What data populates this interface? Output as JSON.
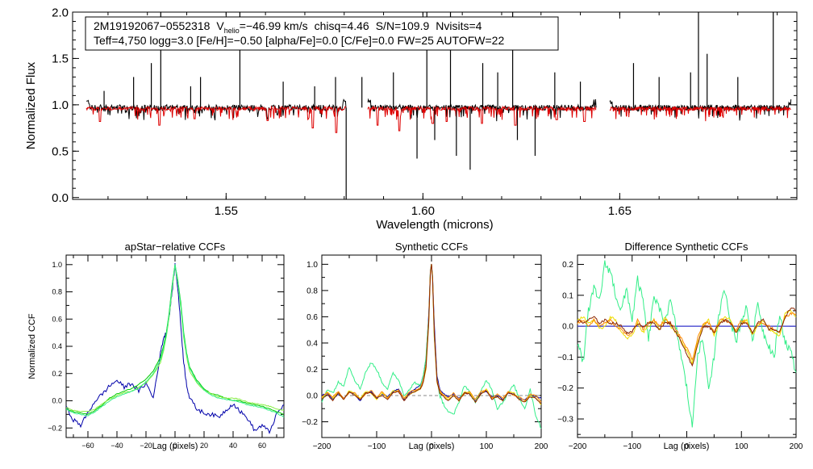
{
  "figure": {
    "info_line1": {
      "star": "2M19192067−0552318",
      "v_prefix": "V",
      "v_sub": "helio",
      "v_value": "=−46.99 km/s",
      "chisq": "chisq=4.46",
      "sn": "S/N=109.9",
      "nvisits": "Nvisits=4"
    },
    "info_line2": "Teff=4,750 logg=3.0 [Fe/H]=−0.50 [alpha/Fe]=0.0 [C/Fe]=0.0 FW=25 AUTOFW=22"
  },
  "colors": {
    "observed": "#000000",
    "model": "#dd0000",
    "visit1": "#0000aa",
    "visit2": "#00cc00",
    "visit3": "#88ee44",
    "visit4": "#33ee88",
    "visit5": "#eedd00",
    "visit6": "#ff8800",
    "visit7": "#cc0000",
    "visit8": "#8b2500",
    "zero_line": "#3333cc"
  },
  "chart_data": [
    {
      "type": "line",
      "title": "",
      "xlabel": "Wavelength (microns)",
      "ylabel": "Normalized Flux",
      "xlim": [
        1.511,
        1.695
      ],
      "ylim": [
        -0.02,
        2.0
      ],
      "xticks": [
        1.55,
        1.6,
        1.65
      ],
      "xtick_labels": [
        "1.55",
        "1.60",
        "1.65"
      ],
      "yticks": [
        0.0,
        0.5,
        1.0,
        1.5,
        2.0
      ],
      "ytick_labels": [
        "0.0",
        "0.5",
        "1.0",
        "1.5",
        "2.0"
      ],
      "chips": [
        [
          1.5145,
          1.5805
        ],
        [
          1.586,
          1.644
        ],
        [
          1.6475,
          1.6935
        ]
      ],
      "series": [
        {
          "continuum": 0.97,
          "spikes": [
            [
              1.519,
              1.15
            ],
            [
              1.5265,
              1.3
            ],
            [
              1.531,
              1.45
            ],
            [
              1.5334,
              2.0
            ],
            [
              1.541,
              1.2
            ],
            [
              1.5435,
              1.3
            ],
            [
              1.5535,
              2.0
            ],
            [
              1.5645,
              1.25
            ],
            [
              1.5725,
              1.2
            ],
            [
              1.5778,
              1.3
            ],
            [
              1.5845,
              1.3
            ],
            [
              1.5925,
              1.35
            ],
            [
              1.601,
              2.0
            ],
            [
              1.607,
              2.0
            ],
            [
              1.6152,
              1.45
            ],
            [
              1.619,
              1.35
            ],
            [
              1.6228,
              2.0
            ],
            [
              1.6335,
              1.35
            ],
            [
              1.64,
              1.25
            ],
            [
              1.6535,
              1.45
            ],
            [
              1.66,
              1.3
            ],
            [
              1.668,
              1.35
            ],
            [
              1.67,
              2.0
            ],
            [
              1.6722,
              1.55
            ],
            [
              1.68,
              1.3
            ],
            [
              1.689,
              2.0
            ]
          ],
          "dips": [
            [
              1.5805,
              -0.02
            ],
            [
              1.5985,
              0.42
            ],
            [
              1.603,
              0.62
            ],
            [
              1.6085,
              0.45
            ],
            [
              1.612,
              0.3
            ],
            [
              1.6285,
              0.45
            ],
            [
              1.624,
              0.62
            ]
          ]
        },
        {
          "continuum": 0.96,
          "absorption": [
            [
              1.518,
              0.82
            ],
            [
              1.533,
              0.78
            ],
            [
              1.542,
              0.85
            ],
            [
              1.5605,
              0.83
            ],
            [
              1.572,
              0.75
            ],
            [
              1.578,
              0.7
            ],
            [
              1.5885,
              0.78
            ],
            [
              1.594,
              0.72
            ],
            [
              1.6025,
              0.8
            ],
            [
              1.606,
              0.82
            ],
            [
              1.615,
              0.8
            ],
            [
              1.6235,
              0.78
            ],
            [
              1.634,
              0.84
            ],
            [
              1.641,
              0.82
            ]
          ]
        }
      ]
    },
    {
      "type": "line",
      "title": "apStar−relative CCFs",
      "xlabel": "Lag (pixels)",
      "ylabel": "Normalized CCF",
      "xlim": [
        -75,
        75
      ],
      "ylim": [
        -0.27,
        1.07
      ],
      "xticks": [
        -60,
        -40,
        -20,
        0,
        20,
        40,
        60
      ],
      "yticks": [
        -0.2,
        0.0,
        0.2,
        0.4,
        0.6,
        0.8,
        1.0
      ],
      "ytick_labels": [
        "−0.2",
        "0.0",
        "0.2",
        "0.4",
        "0.6",
        "0.8",
        "1.0"
      ],
      "x": [
        -75,
        -70,
        -65,
        -60,
        -55,
        -50,
        -45,
        -40,
        -35,
        -30,
        -25,
        -20,
        -15,
        -10,
        -8,
        -6,
        -4,
        -2,
        0,
        2,
        4,
        6,
        8,
        10,
        15,
        20,
        25,
        30,
        35,
        40,
        45,
        50,
        55,
        60,
        65,
        70,
        75
      ],
      "series": [
        {
          "values": [
            -0.05,
            -0.14,
            -0.18,
            -0.09,
            0.0,
            0.05,
            0.11,
            0.15,
            0.1,
            0.13,
            0.07,
            0.13,
            0.02,
            0.35,
            0.46,
            0.5,
            0.62,
            0.8,
            1.0,
            0.82,
            0.55,
            0.28,
            0.12,
            0.02,
            -0.06,
            -0.09,
            -0.1,
            -0.12,
            -0.07,
            -0.02,
            -0.08,
            -0.13,
            -0.22,
            -0.18,
            -0.23,
            -0.1,
            -0.03
          ]
        },
        {
          "values": [
            -0.06,
            -0.08,
            -0.09,
            -0.1,
            -0.07,
            -0.03,
            0.02,
            0.05,
            0.07,
            0.09,
            0.12,
            0.16,
            0.22,
            0.32,
            0.4,
            0.5,
            0.65,
            0.85,
            1.0,
            0.88,
            0.72,
            0.5,
            0.35,
            0.25,
            0.15,
            0.09,
            0.05,
            0.04,
            0.02,
            0.0,
            0.0,
            -0.02,
            -0.03,
            -0.04,
            -0.06,
            -0.08,
            -0.1
          ]
        },
        {
          "values": [
            -0.05,
            -0.07,
            -0.08,
            -0.08,
            -0.06,
            -0.02,
            0.01,
            0.04,
            0.06,
            0.07,
            0.1,
            0.13,
            0.19,
            0.28,
            0.36,
            0.47,
            0.62,
            0.82,
            1.0,
            0.86,
            0.68,
            0.46,
            0.32,
            0.22,
            0.13,
            0.08,
            0.05,
            0.03,
            0.02,
            0.02,
            0.01,
            -0.01,
            -0.02,
            -0.03,
            -0.04,
            -0.06,
            -0.07
          ]
        },
        {
          "values": [
            -0.06,
            -0.09,
            -0.1,
            -0.11,
            -0.08,
            -0.04,
            0.0,
            0.03,
            0.05,
            0.07,
            0.09,
            0.14,
            0.2,
            0.3,
            0.38,
            0.48,
            0.64,
            0.84,
            1.0,
            0.87,
            0.7,
            0.48,
            0.34,
            0.24,
            0.14,
            0.08,
            0.04,
            0.02,
            0.01,
            0.0,
            -0.01,
            -0.03,
            -0.04,
            -0.05,
            -0.07,
            -0.09,
            -0.12
          ]
        }
      ]
    },
    {
      "type": "line",
      "title": "Synthetic CCFs",
      "xlabel": "Lag (pixels)",
      "ylabel": "",
      "xlim": [
        -200,
        200
      ],
      "ylim": [
        -0.32,
        1.07
      ],
      "xticks": [
        -200,
        -100,
        0,
        100,
        200
      ],
      "xtick_labels": [
        "−200",
        "−100",
        "0",
        "100",
        "200"
      ],
      "yticks": [
        -0.2,
        0.0,
        0.2,
        0.4,
        0.6,
        0.8,
        1.0
      ],
      "ytick_labels": [
        "−0.2",
        "0.0",
        "0.2",
        "0.4",
        "0.6",
        "0.8",
        "1.0"
      ],
      "x": [
        -200,
        -190,
        -180,
        -170,
        -160,
        -150,
        -140,
        -130,
        -120,
        -110,
        -100,
        -90,
        -80,
        -70,
        -60,
        -50,
        -40,
        -30,
        -20,
        -15,
        -10,
        -5,
        -2,
        0,
        2,
        5,
        10,
        15,
        20,
        30,
        40,
        50,
        60,
        70,
        80,
        90,
        100,
        110,
        120,
        130,
        140,
        150,
        160,
        170,
        180,
        190,
        200
      ],
      "series": [
        {
          "values": [
            0.0,
            0.02,
            -0.03,
            0.01,
            -0.02,
            0.03,
            0.01,
            -0.04,
            0.02,
            0.03,
            -0.02,
            0.01,
            -0.01,
            0.03,
            0.05,
            -0.03,
            0.02,
            0.05,
            0.08,
            0.15,
            0.28,
            0.62,
            0.95,
            1.0,
            0.9,
            0.55,
            0.15,
            0.05,
            0.02,
            -0.01,
            0.01,
            -0.02,
            0.02,
            0.01,
            -0.04,
            0.02,
            0.03,
            -0.01,
            0.0,
            -0.03,
            0.02,
            0.01,
            -0.02,
            -0.03,
            0.0,
            -0.01,
            -0.02
          ]
        },
        {
          "values": [
            -0.05,
            0.05,
            0.02,
            0.1,
            0.08,
            0.22,
            0.12,
            0.05,
            0.18,
            0.25,
            0.2,
            0.1,
            0.05,
            0.17,
            0.12,
            0.0,
            0.05,
            0.1,
            0.07,
            0.15,
            0.3,
            0.6,
            0.96,
            1.0,
            0.9,
            0.45,
            0.12,
            0.0,
            -0.05,
            -0.12,
            -0.15,
            -0.05,
            0.08,
            0.02,
            -0.05,
            0.03,
            0.12,
            0.05,
            -0.1,
            -0.05,
            0.02,
            0.08,
            -0.02,
            -0.1,
            0.05,
            -0.15,
            -0.25
          ]
        },
        {
          "values": [
            -0.02,
            0.03,
            -0.02,
            0.02,
            -0.03,
            0.04,
            0.01,
            -0.02,
            0.03,
            0.02,
            -0.03,
            0.02,
            -0.02,
            0.04,
            0.03,
            -0.02,
            0.01,
            0.03,
            0.05,
            0.1,
            0.2,
            0.55,
            0.94,
            1.0,
            0.88,
            0.45,
            0.1,
            0.03,
            0.0,
            -0.03,
            0.0,
            -0.04,
            0.03,
            0.02,
            -0.05,
            0.01,
            0.05,
            -0.02,
            -0.01,
            -0.04,
            0.03,
            0.02,
            -0.03,
            -0.05,
            0.0,
            -0.02,
            -0.07
          ]
        },
        {
          "values": [
            -0.01,
            0.02,
            -0.01,
            0.03,
            -0.02,
            0.02,
            0.02,
            -0.03,
            0.01,
            0.04,
            -0.01,
            0.03,
            -0.02,
            0.02,
            0.04,
            -0.02,
            0.03,
            0.04,
            0.06,
            0.12,
            0.24,
            0.58,
            0.95,
            1.0,
            0.89,
            0.5,
            0.12,
            0.04,
            0.01,
            -0.02,
            0.02,
            -0.03,
            0.01,
            0.03,
            -0.03,
            0.03,
            0.04,
            -0.02,
            0.01,
            -0.02,
            0.03,
            0.0,
            -0.01,
            -0.04,
            0.01,
            0.0,
            -0.05
          ]
        },
        {
          "values": [
            -0.03,
            0.01,
            -0.04,
            0.02,
            -0.03,
            0.03,
            0.0,
            -0.03,
            0.02,
            0.02,
            -0.02,
            0.0,
            -0.03,
            0.02,
            0.03,
            -0.04,
            0.01,
            0.03,
            0.05,
            0.1,
            0.22,
            0.56,
            0.94,
            1.0,
            0.88,
            0.48,
            0.11,
            0.02,
            0.0,
            -0.04,
            0.0,
            -0.04,
            0.02,
            0.01,
            -0.05,
            0.01,
            0.04,
            -0.03,
            -0.01,
            -0.04,
            0.02,
            0.01,
            -0.03,
            -0.05,
            -0.01,
            -0.02,
            -0.06
          ]
        }
      ]
    },
    {
      "type": "line",
      "title": "Difference Synthetic CCFs",
      "xlabel": "Lag (pixels)",
      "ylabel": "",
      "xlim": [
        -200,
        200
      ],
      "ylim": [
        -0.36,
        0.23
      ],
      "xticks": [
        -200,
        -100,
        0,
        100,
        200
      ],
      "xtick_labels": [
        "−200",
        "−100",
        "0",
        "100",
        "200"
      ],
      "yticks": [
        -0.3,
        -0.2,
        -0.1,
        0.0,
        0.1,
        0.2
      ],
      "ytick_labels": [
        "−0.3",
        "−0.2",
        "−0.1",
        "0.0",
        "0.1",
        "0.2"
      ],
      "x": [
        -200,
        -190,
        -180,
        -170,
        -160,
        -150,
        -140,
        -130,
        -120,
        -110,
        -100,
        -90,
        -80,
        -70,
        -60,
        -50,
        -40,
        -30,
        -20,
        -10,
        0,
        10,
        20,
        30,
        40,
        50,
        60,
        70,
        80,
        90,
        100,
        110,
        120,
        130,
        140,
        150,
        160,
        170,
        180,
        190,
        200
      ],
      "series": [
        {
          "values": [
            0.0,
            0.0,
            0.0,
            0.0,
            0.0,
            0.0,
            0.0,
            0.0,
            0.0,
            0.0,
            0.0,
            0.0,
            0.0,
            0.0,
            0.0,
            0.0,
            0.0,
            0.0,
            0.0,
            0.0,
            0.0,
            0.0,
            0.0,
            0.0,
            0.0,
            0.0,
            0.0,
            0.0,
            0.0,
            0.0,
            0.0,
            0.0,
            0.0,
            0.0,
            0.0,
            0.0,
            0.0,
            0.0,
            0.0,
            0.0,
            0.0
          ]
        },
        {
          "values": [
            -0.05,
            -0.12,
            0.05,
            0.12,
            0.08,
            0.2,
            0.18,
            0.1,
            0.05,
            0.12,
            0.02,
            0.15,
            0.08,
            -0.05,
            0.1,
            0.05,
            0.02,
            0.08,
            0.0,
            -0.1,
            -0.2,
            -0.33,
            -0.08,
            -0.05,
            -0.2,
            -0.1,
            0.05,
            0.12,
            0.02,
            -0.05,
            0.02,
            0.06,
            -0.05,
            0.08,
            -0.02,
            -0.06,
            -0.1,
            0.04,
            -0.05,
            -0.08,
            -0.15
          ]
        },
        {
          "values": [
            0.02,
            0.03,
            0.01,
            0.02,
            -0.01,
            0.0,
            0.03,
            0.02,
            -0.02,
            -0.04,
            -0.03,
            0.01,
            -0.02,
            0.0,
            0.02,
            -0.01,
            0.03,
            0.0,
            -0.02,
            -0.05,
            -0.08,
            -0.12,
            -0.05,
            0.0,
            0.02,
            -0.03,
            0.01,
            0.03,
            0.02,
            -0.02,
            0.01,
            0.02,
            -0.03,
            0.0,
            0.02,
            -0.01,
            -0.02,
            -0.03,
            0.04,
            0.05,
            0.03
          ]
        },
        {
          "values": [
            0.01,
            0.02,
            0.0,
            0.02,
            0.0,
            0.01,
            0.02,
            0.0,
            -0.01,
            -0.03,
            -0.02,
            0.02,
            -0.01,
            0.01,
            0.02,
            0.0,
            0.02,
            0.01,
            -0.01,
            -0.04,
            -0.07,
            -0.11,
            -0.04,
            0.01,
            0.01,
            -0.02,
            0.02,
            0.02,
            0.01,
            -0.01,
            0.02,
            0.01,
            -0.02,
            0.01,
            0.01,
            0.0,
            -0.01,
            -0.02,
            0.03,
            0.04,
            0.04
          ]
        },
        {
          "values": [
            0.02,
            0.01,
            0.02,
            0.03,
            0.01,
            0.02,
            0.01,
            0.01,
            0.0,
            -0.02,
            -0.02,
            0.01,
            0.0,
            0.01,
            0.01,
            -0.01,
            0.01,
            0.01,
            -0.02,
            -0.05,
            -0.09,
            -0.13,
            -0.06,
            0.0,
            0.0,
            -0.02,
            0.01,
            0.02,
            0.01,
            -0.02,
            0.01,
            0.01,
            -0.02,
            0.01,
            0.02,
            -0.01,
            -0.01,
            -0.02,
            0.03,
            0.06,
            0.05
          ]
        }
      ]
    }
  ]
}
